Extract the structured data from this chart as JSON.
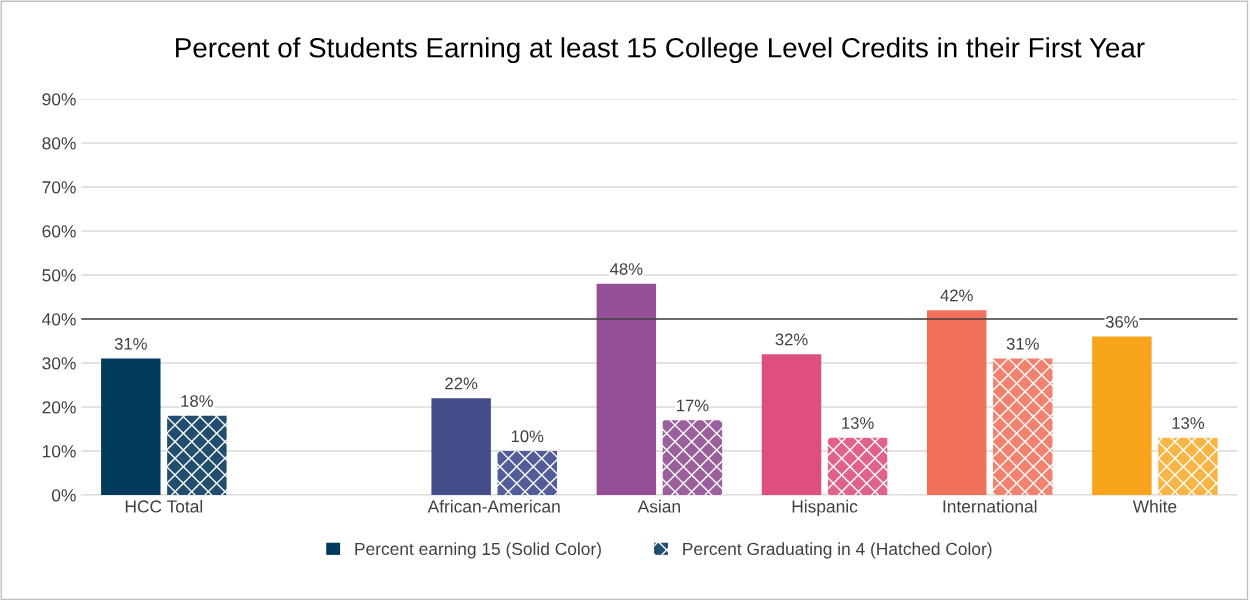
{
  "chart_data": {
    "type": "bar",
    "title": "Percent of Students Earning at least 15 College Level Credits in their First Year",
    "categories": [
      "HCC Total",
      null,
      "African-American",
      "Asian",
      "Hispanic",
      "International",
      "White"
    ],
    "series": [
      {
        "name": "Percent earning 15 (Solid Color)",
        "color": "#003a5c",
        "colors": [
          "#003a5c",
          "#003a5c",
          "#434d8a",
          "#954f96",
          "#de4f7f",
          "#f0705a",
          "#f9a51c"
        ],
        "values": [
          31,
          null,
          22,
          48,
          32,
          42,
          36
        ],
        "value_labels": [
          "31%",
          null,
          "22%",
          "48%",
          "32%",
          "42%",
          "36%"
        ]
      },
      {
        "name": "Percent Graduating in 4 (Hatched Color)",
        "color": "#1f4e6e",
        "colors": [
          "#1f4e6e",
          "#1f4e6e",
          "#525c98",
          "#9a5f9c",
          "#e0628c",
          "#f2826d",
          "#f9b544"
        ],
        "values": [
          18,
          null,
          10,
          17,
          13,
          31,
          13
        ],
        "value_labels": [
          "18%",
          null,
          "10%",
          "17%",
          "13%",
          "31%",
          "13%"
        ]
      }
    ],
    "ylim": [
      0,
      90
    ],
    "yticks": [
      {
        "value": 0,
        "label": "0%"
      },
      {
        "value": 10,
        "label": "10%"
      },
      {
        "value": 20,
        "label": "20%"
      },
      {
        "value": 30,
        "label": "30%"
      },
      {
        "value": 40,
        "label": "40%"
      },
      {
        "value": 50,
        "label": "50%"
      },
      {
        "value": 60,
        "label": "60%"
      },
      {
        "value": 70,
        "label": "70%"
      },
      {
        "value": 80,
        "label": "80%"
      },
      {
        "value": 90,
        "label": "90%"
      }
    ],
    "ref_lines": [
      {
        "axis": "y",
        "value": 40,
        "label": null,
        "color": "#404040"
      }
    ],
    "grid": "y",
    "legend": "bottom"
  }
}
